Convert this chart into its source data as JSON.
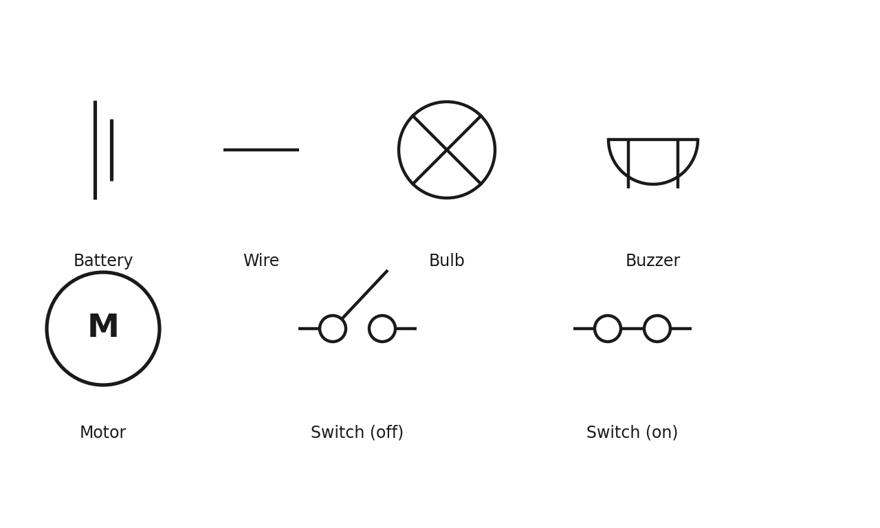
{
  "bg_color": "#ffffff",
  "line_color": "#1a1a1a",
  "lw": 3.2,
  "label_fontsize": 17,
  "label_fontweight": "normal",
  "fig_w": 12.8,
  "fig_h": 7.68,
  "labels": {
    "battery": "Battery",
    "wire": "Wire",
    "bulb": "Bulb",
    "buzzer": "Buzzer",
    "motor": "Motor",
    "switch_off": "Switch (off)",
    "switch_on": "Switch (on)"
  }
}
